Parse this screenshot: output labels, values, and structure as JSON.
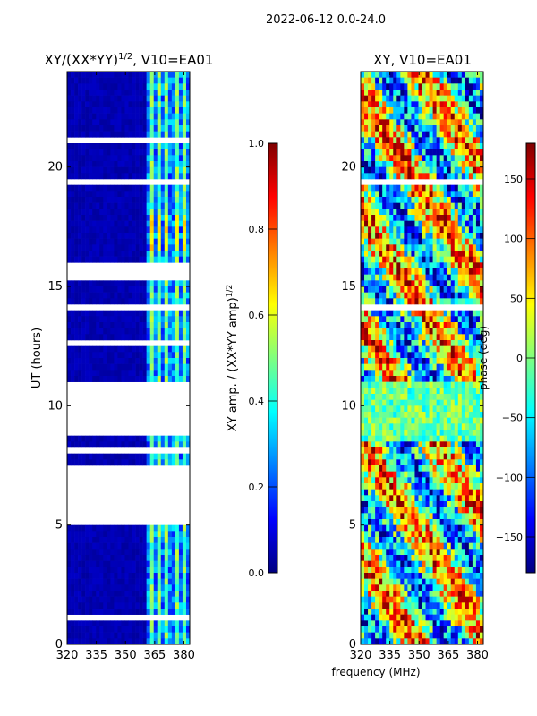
{
  "figure_title": "2022-06-12 0.0-24.0",
  "shared_xlabel": "frequency (MHz)",
  "colormap": [
    "#00007f",
    "#0000ff",
    "#007fff",
    "#00ffff",
    "#7fff7f",
    "#ffff00",
    "#ff7f00",
    "#ff0000",
    "#7f0000"
  ],
  "chart_data": [
    {
      "type": "heatmap",
      "title": "XY/(XX*YY)^{1/2}, V10=EA01",
      "title_main": "XY/(XX*YY)",
      "title_exp": "1/2",
      "title_rest": ", V10=EA01",
      "xlabel": "",
      "ylabel": "UT (hours)",
      "xlim": [
        320,
        383
      ],
      "ylim": [
        0,
        24
      ],
      "xticks": [
        "320",
        "335",
        "350",
        "365",
        "380"
      ],
      "xtick_values": [
        320,
        335,
        350,
        365,
        380
      ],
      "yticks": [
        "0",
        "5",
        "10",
        "15",
        "20"
      ],
      "ytick_values": [
        0,
        5,
        10,
        15,
        20
      ],
      "colorbar": {
        "label_main": "XY amp. / (XX*YY amp)",
        "label_exp": "1/2",
        "range": [
          0,
          1
        ],
        "ticks": [
          "0.0",
          "0.2",
          "0.4",
          "0.6",
          "0.8",
          "1.0"
        ],
        "tick_values": [
          0,
          0.2,
          0.4,
          0.6,
          0.8,
          1.0
        ]
      },
      "flagged_ut_bands": [
        [
          0.3,
          0.35
        ],
        [
          1.1,
          1.15
        ],
        [
          2.0,
          2.1
        ],
        [
          3.2,
          3.25
        ],
        [
          4.5,
          4.6
        ],
        [
          5.0,
          7.5
        ],
        [
          8.0,
          8.3
        ],
        [
          8.8,
          10.9
        ],
        [
          11.2,
          11.3
        ],
        [
          12.6,
          12.7
        ],
        [
          14.0,
          14.2
        ],
        [
          15.2,
          16.0
        ],
        [
          16.9,
          17.0
        ],
        [
          18.0,
          18.1
        ],
        [
          19.2,
          19.6
        ],
        [
          21.0,
          21.3
        ],
        [
          22.2,
          22.3
        ],
        [
          22.9,
          23.0
        ],
        [
          23.5,
          23.6
        ]
      ],
      "bright_channels_mhz": [
        363,
        367,
        371,
        376,
        380
      ],
      "peak_region": {
        "ut": [
          16.5,
          18.0
        ],
        "mhz": [
          362,
          381
        ],
        "value": 0.7
      }
    },
    {
      "type": "heatmap",
      "title": "XY, V10=EA01",
      "xlabel": "frequency (MHz)",
      "ylabel": "",
      "xlim": [
        320,
        383
      ],
      "ylim": [
        0,
        24
      ],
      "xticks": [
        "320",
        "335",
        "350",
        "365",
        "380"
      ],
      "xtick_values": [
        320,
        335,
        350,
        365,
        380
      ],
      "yticks": [
        "0",
        "5",
        "10",
        "15",
        "20"
      ],
      "ytick_values": [
        0,
        5,
        10,
        15,
        20
      ],
      "colorbar": {
        "label": "phase (deg)",
        "range": [
          -180,
          180
        ],
        "ticks": [
          "−150",
          "−100",
          "−50",
          "0",
          "50",
          "100",
          "150"
        ],
        "tick_values": [
          -150,
          -100,
          -50,
          0,
          50,
          100,
          150
        ]
      },
      "flagged_ut_bands": [
        [
          2.0,
          2.05
        ],
        [
          4.4,
          4.5
        ],
        [
          5.9,
          6.0
        ],
        [
          7.3,
          7.35
        ],
        [
          8.4,
          8.5
        ],
        [
          11.0,
          11.05
        ],
        [
          14.1,
          14.2
        ],
        [
          15.2,
          15.3
        ],
        [
          18.9,
          19.0
        ],
        [
          19.2,
          19.5
        ],
        [
          21.2,
          21.3
        ],
        [
          22.9,
          23.0
        ]
      ]
    }
  ]
}
